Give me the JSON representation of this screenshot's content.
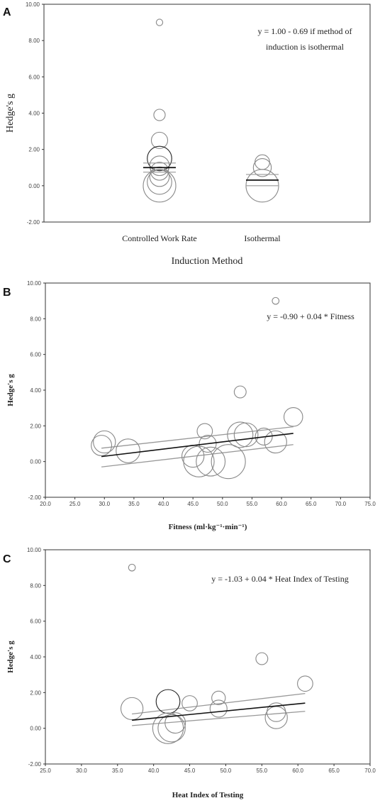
{
  "chart_data": [
    {
      "type": "scatter",
      "panel": "A",
      "xlabel": "Induction Method",
      "ylabel": "Hedge's g",
      "categories": [
        "Controlled Work Rate",
        "Isothermal"
      ],
      "ylim": [
        -2,
        10
      ],
      "yticks": [
        "-2.00",
        "0.00",
        "2.00",
        "4.00",
        "6.00",
        "8.00",
        "10.00"
      ],
      "annotation": [
        "y = 1.00 - 0.69 if method of",
        "induction is isothermal"
      ],
      "points": [
        {
          "cat": 0,
          "y": 9.0,
          "w": 0.2
        },
        {
          "cat": 0,
          "y": 3.9,
          "w": 0.35
        },
        {
          "cat": 0,
          "y": 2.5,
          "w": 0.5
        },
        {
          "cat": 0,
          "y": 1.5,
          "w": 0.75
        },
        {
          "cat": 0,
          "y": 1.1,
          "w": 0.6
        },
        {
          "cat": 0,
          "y": 0.8,
          "w": 0.55
        },
        {
          "cat": 0,
          "y": 0.5,
          "w": 0.6
        },
        {
          "cat": 0,
          "y": 0.2,
          "w": 0.75
        },
        {
          "cat": 0,
          "y": 0.0,
          "w": 1.0
        },
        {
          "cat": 1,
          "y": 1.3,
          "w": 0.45
        },
        {
          "cat": 1,
          "y": 1.0,
          "w": 0.55
        },
        {
          "cat": 1,
          "y": 0.0,
          "w": 1.0
        }
      ],
      "means": [
        {
          "cat": 0,
          "mean": 1.0,
          "lo": 0.75,
          "hi": 1.25
        },
        {
          "cat": 1,
          "mean": 0.31,
          "lo": 0.0,
          "hi": 0.62
        }
      ]
    },
    {
      "type": "scatter",
      "panel": "B",
      "xlabel": "Fitness (ml·kg⁻¹·min⁻¹)",
      "ylabel": "Hedge's g",
      "xlim": [
        20,
        75
      ],
      "ylim": [
        -2,
        10
      ],
      "xticks": [
        "20.0",
        "25.0",
        "30.0",
        "35.0",
        "40.0",
        "45.0",
        "50.0",
        "55.0",
        "60.0",
        "65.0",
        "70.0",
        "75.0"
      ],
      "yticks": [
        "-2.00",
        "0.00",
        "2.00",
        "4.00",
        "6.00",
        "8.00",
        "10.00"
      ],
      "annotation": [
        "y = -0.90 + 0.04 * Fitness"
      ],
      "points": [
        {
          "x": 59.0,
          "y": 9.0,
          "w": 0.2
        },
        {
          "x": 53.0,
          "y": 3.9,
          "w": 0.35
        },
        {
          "x": 62.0,
          "y": 2.5,
          "w": 0.55
        },
        {
          "x": 47.0,
          "y": 1.7,
          "w": 0.45
        },
        {
          "x": 53.0,
          "y": 1.5,
          "w": 0.75
        },
        {
          "x": 54.0,
          "y": 1.5,
          "w": 0.7
        },
        {
          "x": 57.0,
          "y": 1.4,
          "w": 0.5
        },
        {
          "x": 59.0,
          "y": 1.1,
          "w": 0.65
        },
        {
          "x": 30.0,
          "y": 1.1,
          "w": 0.65
        },
        {
          "x": 29.5,
          "y": 0.9,
          "w": 0.6
        },
        {
          "x": 47.5,
          "y": 1.0,
          "w": 0.5
        },
        {
          "x": 34.0,
          "y": 0.6,
          "w": 0.7
        },
        {
          "x": 45.0,
          "y": 0.3,
          "w": 0.65
        },
        {
          "x": 46.0,
          "y": 0.0,
          "w": 0.9
        },
        {
          "x": 48.0,
          "y": 0.0,
          "w": 0.85
        },
        {
          "x": 51.0,
          "y": 0.0,
          "w": 1.0
        }
      ],
      "fit": {
        "intercept": -0.9,
        "slope": 0.04,
        "x_range": [
          29.5,
          62
        ]
      },
      "ci_upper": [
        [
          29.5,
          0.75
        ],
        [
          62,
          1.95
        ]
      ],
      "ci_lower": [
        [
          29.5,
          -0.3
        ],
        [
          62,
          0.95
        ]
      ]
    },
    {
      "type": "scatter",
      "panel": "C",
      "xlabel": "Heat Index of Testing",
      "ylabel": "Hedge's g",
      "xlim": [
        25,
        70
      ],
      "ylim": [
        -2,
        10
      ],
      "xticks": [
        "25.0",
        "30.0",
        "35.0",
        "40.0",
        "45.0",
        "50.0",
        "55.0",
        "60.0",
        "65.0",
        "70.0"
      ],
      "yticks": [
        "-2.00",
        "0.00",
        "2.00",
        "4.00",
        "6.00",
        "8.00",
        "10.00"
      ],
      "annotation": [
        "y = -1.03 + 0.04 * Heat Index of Testing"
      ],
      "points": [
        {
          "x": 37.0,
          "y": 9.0,
          "w": 0.2
        },
        {
          "x": 55.0,
          "y": 3.9,
          "w": 0.35
        },
        {
          "x": 61.0,
          "y": 2.5,
          "w": 0.45
        },
        {
          "x": 49.0,
          "y": 1.7,
          "w": 0.4
        },
        {
          "x": 42.0,
          "y": 1.5,
          "w": 0.7
        },
        {
          "x": 45.0,
          "y": 1.4,
          "w": 0.45
        },
        {
          "x": 49.0,
          "y": 1.1,
          "w": 0.5
        },
        {
          "x": 37.0,
          "y": 1.1,
          "w": 0.65
        },
        {
          "x": 57.0,
          "y": 0.9,
          "w": 0.55
        },
        {
          "x": 57.0,
          "y": 0.6,
          "w": 0.65
        },
        {
          "x": 43.0,
          "y": 0.3,
          "w": 0.6
        },
        {
          "x": 42.0,
          "y": 0.0,
          "w": 0.9
        },
        {
          "x": 42.5,
          "y": 0.0,
          "w": 0.8
        }
      ],
      "fit": {
        "intercept": -1.03,
        "slope": 0.04,
        "x_range": [
          37,
          61
        ]
      },
      "ci_upper": [
        [
          37,
          0.8
        ],
        [
          61,
          1.95
        ]
      ],
      "ci_lower": [
        [
          37,
          0.15
        ],
        [
          61,
          0.95
        ]
      ]
    }
  ]
}
